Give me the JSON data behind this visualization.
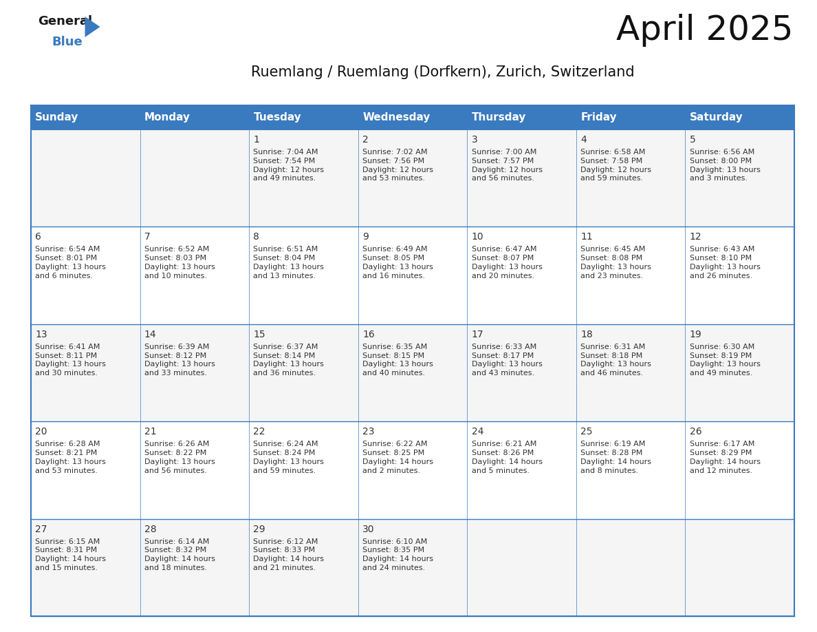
{
  "title": "April 2025",
  "subtitle": "Ruemlang / Ruemlang (Dorfkern), Zurich, Switzerland",
  "header_color": "#3a7abf",
  "header_text_color": "#ffffff",
  "cell_bg_even": "#f5f5f5",
  "cell_bg_odd": "#ffffff",
  "border_color": "#3a7abf",
  "text_color": "#333333",
  "day_names": [
    "Sunday",
    "Monday",
    "Tuesday",
    "Wednesday",
    "Thursday",
    "Friday",
    "Saturday"
  ],
  "weeks": [
    [
      {
        "day": "",
        "info": ""
      },
      {
        "day": "",
        "info": ""
      },
      {
        "day": "1",
        "info": "Sunrise: 7:04 AM\nSunset: 7:54 PM\nDaylight: 12 hours\nand 49 minutes."
      },
      {
        "day": "2",
        "info": "Sunrise: 7:02 AM\nSunset: 7:56 PM\nDaylight: 12 hours\nand 53 minutes."
      },
      {
        "day": "3",
        "info": "Sunrise: 7:00 AM\nSunset: 7:57 PM\nDaylight: 12 hours\nand 56 minutes."
      },
      {
        "day": "4",
        "info": "Sunrise: 6:58 AM\nSunset: 7:58 PM\nDaylight: 12 hours\nand 59 minutes."
      },
      {
        "day": "5",
        "info": "Sunrise: 6:56 AM\nSunset: 8:00 PM\nDaylight: 13 hours\nand 3 minutes."
      }
    ],
    [
      {
        "day": "6",
        "info": "Sunrise: 6:54 AM\nSunset: 8:01 PM\nDaylight: 13 hours\nand 6 minutes."
      },
      {
        "day": "7",
        "info": "Sunrise: 6:52 AM\nSunset: 8:03 PM\nDaylight: 13 hours\nand 10 minutes."
      },
      {
        "day": "8",
        "info": "Sunrise: 6:51 AM\nSunset: 8:04 PM\nDaylight: 13 hours\nand 13 minutes."
      },
      {
        "day": "9",
        "info": "Sunrise: 6:49 AM\nSunset: 8:05 PM\nDaylight: 13 hours\nand 16 minutes."
      },
      {
        "day": "10",
        "info": "Sunrise: 6:47 AM\nSunset: 8:07 PM\nDaylight: 13 hours\nand 20 minutes."
      },
      {
        "day": "11",
        "info": "Sunrise: 6:45 AM\nSunset: 8:08 PM\nDaylight: 13 hours\nand 23 minutes."
      },
      {
        "day": "12",
        "info": "Sunrise: 6:43 AM\nSunset: 8:10 PM\nDaylight: 13 hours\nand 26 minutes."
      }
    ],
    [
      {
        "day": "13",
        "info": "Sunrise: 6:41 AM\nSunset: 8:11 PM\nDaylight: 13 hours\nand 30 minutes."
      },
      {
        "day": "14",
        "info": "Sunrise: 6:39 AM\nSunset: 8:12 PM\nDaylight: 13 hours\nand 33 minutes."
      },
      {
        "day": "15",
        "info": "Sunrise: 6:37 AM\nSunset: 8:14 PM\nDaylight: 13 hours\nand 36 minutes."
      },
      {
        "day": "16",
        "info": "Sunrise: 6:35 AM\nSunset: 8:15 PM\nDaylight: 13 hours\nand 40 minutes."
      },
      {
        "day": "17",
        "info": "Sunrise: 6:33 AM\nSunset: 8:17 PM\nDaylight: 13 hours\nand 43 minutes."
      },
      {
        "day": "18",
        "info": "Sunrise: 6:31 AM\nSunset: 8:18 PM\nDaylight: 13 hours\nand 46 minutes."
      },
      {
        "day": "19",
        "info": "Sunrise: 6:30 AM\nSunset: 8:19 PM\nDaylight: 13 hours\nand 49 minutes."
      }
    ],
    [
      {
        "day": "20",
        "info": "Sunrise: 6:28 AM\nSunset: 8:21 PM\nDaylight: 13 hours\nand 53 minutes."
      },
      {
        "day": "21",
        "info": "Sunrise: 6:26 AM\nSunset: 8:22 PM\nDaylight: 13 hours\nand 56 minutes."
      },
      {
        "day": "22",
        "info": "Sunrise: 6:24 AM\nSunset: 8:24 PM\nDaylight: 13 hours\nand 59 minutes."
      },
      {
        "day": "23",
        "info": "Sunrise: 6:22 AM\nSunset: 8:25 PM\nDaylight: 14 hours\nand 2 minutes."
      },
      {
        "day": "24",
        "info": "Sunrise: 6:21 AM\nSunset: 8:26 PM\nDaylight: 14 hours\nand 5 minutes."
      },
      {
        "day": "25",
        "info": "Sunrise: 6:19 AM\nSunset: 8:28 PM\nDaylight: 14 hours\nand 8 minutes."
      },
      {
        "day": "26",
        "info": "Sunrise: 6:17 AM\nSunset: 8:29 PM\nDaylight: 14 hours\nand 12 minutes."
      }
    ],
    [
      {
        "day": "27",
        "info": "Sunrise: 6:15 AM\nSunset: 8:31 PM\nDaylight: 14 hours\nand 15 minutes."
      },
      {
        "day": "28",
        "info": "Sunrise: 6:14 AM\nSunset: 8:32 PM\nDaylight: 14 hours\nand 18 minutes."
      },
      {
        "day": "29",
        "info": "Sunrise: 6:12 AM\nSunset: 8:33 PM\nDaylight: 14 hours\nand 21 minutes."
      },
      {
        "day": "30",
        "info": "Sunrise: 6:10 AM\nSunset: 8:35 PM\nDaylight: 14 hours\nand 24 minutes."
      },
      {
        "day": "",
        "info": ""
      },
      {
        "day": "",
        "info": ""
      },
      {
        "day": "",
        "info": ""
      }
    ]
  ],
  "logo_general_color": "#1a1a1a",
  "logo_blue_color": "#3a7abf",
  "title_fontsize": 36,
  "subtitle_fontsize": 15,
  "header_fontsize": 11,
  "day_num_fontsize": 10,
  "info_fontsize": 8
}
